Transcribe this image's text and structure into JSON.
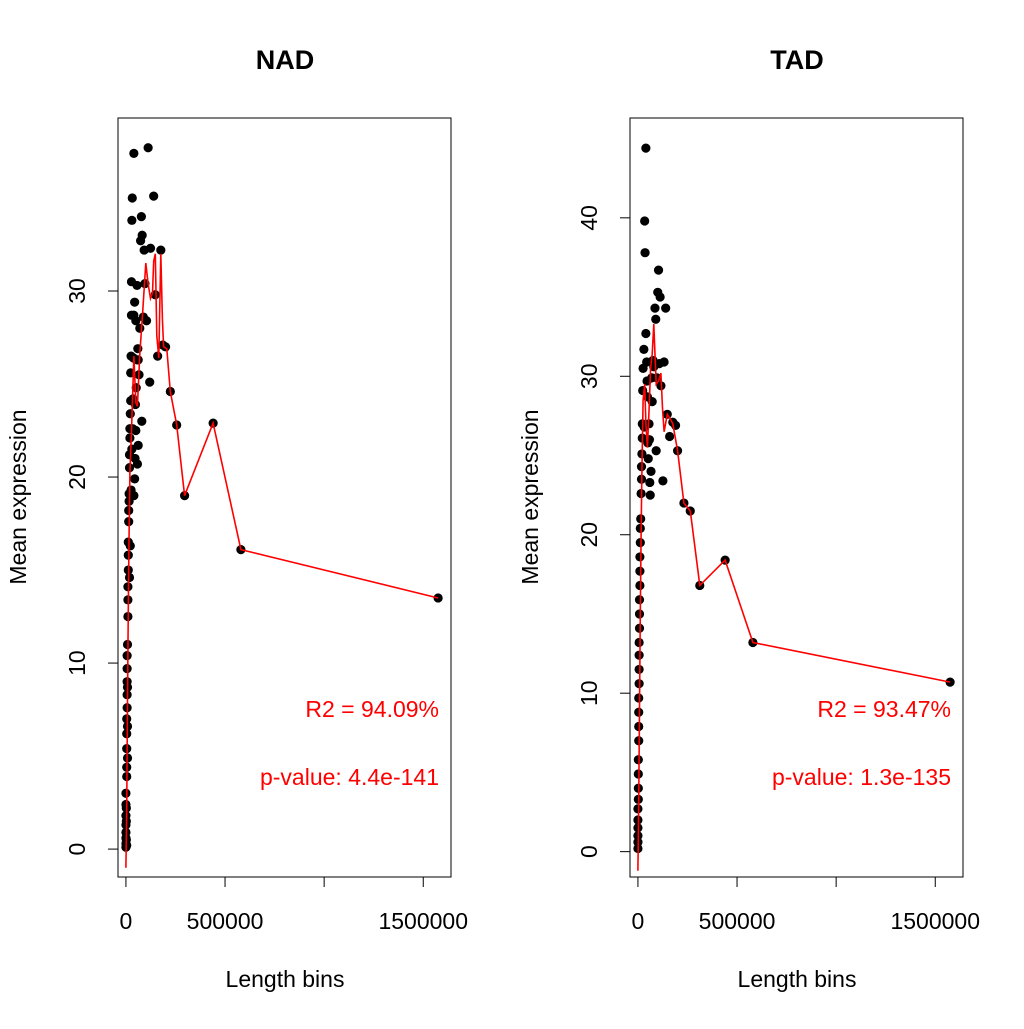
{
  "chart_data": [
    {
      "type": "scatter",
      "title": "NAD",
      "xlabel": "Length bins",
      "ylabel": "Mean expression",
      "xlim": [
        -40000,
        1640000
      ],
      "ylim": [
        -1.5,
        39.3
      ],
      "xticks": [
        0,
        500000,
        1000000,
        1500000
      ],
      "xtick_labels": [
        "0",
        "500000",
        "",
        "1500000"
      ],
      "yticks": [
        0,
        10,
        20,
        30
      ],
      "ytick_labels": [
        "0",
        "10",
        "20",
        "30"
      ],
      "line_color": "#ff0000",
      "point_color": "#000000",
      "annotations": [
        "R2 = 94.09%",
        "p-value: 4.4e-141"
      ],
      "annotation_color": "#ff0000",
      "points": [
        [
          0,
          0.1
        ],
        [
          0,
          0.3
        ],
        [
          0,
          0.6
        ],
        [
          0,
          0.9
        ],
        [
          0,
          1.3
        ],
        [
          0,
          1.8
        ],
        [
          0,
          2.4
        ],
        [
          0,
          3.0
        ],
        [
          2000,
          0.5
        ],
        [
          2000,
          1.5
        ],
        [
          2000,
          2.2
        ],
        [
          4000,
          0.2
        ],
        [
          4000,
          3.9
        ],
        [
          4000,
          4.4
        ],
        [
          4000,
          5.4
        ],
        [
          4000,
          6.2
        ],
        [
          4000,
          7.0
        ],
        [
          6000,
          7.6
        ],
        [
          6000,
          8.3
        ],
        [
          6000,
          9.0
        ],
        [
          6000,
          9.7
        ],
        [
          6000,
          10.4
        ],
        [
          8000,
          11.0
        ],
        [
          8000,
          8.7
        ],
        [
          8000,
          6.6
        ],
        [
          8000,
          4.9
        ],
        [
          10000,
          12.5
        ],
        [
          10000,
          13.4
        ],
        [
          10000,
          14.1
        ],
        [
          12000,
          15.0
        ],
        [
          12000,
          15.8
        ],
        [
          12000,
          16.5
        ],
        [
          14000,
          17.6
        ],
        [
          14000,
          18.2
        ],
        [
          16000,
          18.7
        ],
        [
          16000,
          19.1
        ],
        [
          18000,
          20.5
        ],
        [
          18000,
          21.2
        ],
        [
          20000,
          22.1
        ],
        [
          20000,
          22.6
        ],
        [
          22000,
          23.4
        ],
        [
          24000,
          24.1
        ],
        [
          24000,
          25.6
        ],
        [
          26000,
          26.5
        ],
        [
          28000,
          28.7
        ],
        [
          28000,
          30.5
        ],
        [
          30000,
          33.8
        ],
        [
          32000,
          35.0
        ],
        [
          40000,
          37.4
        ],
        [
          18000,
          14.6
        ],
        [
          22000,
          16.3
        ],
        [
          26000,
          19.3
        ],
        [
          30000,
          21.5
        ],
        [
          34000,
          22.6
        ],
        [
          36000,
          24.2
        ],
        [
          38000,
          26.4
        ],
        [
          40000,
          28.7
        ],
        [
          44000,
          29.4
        ],
        [
          50000,
          28.4
        ],
        [
          56000,
          30.3
        ],
        [
          60000,
          26.9
        ],
        [
          62000,
          26.3
        ],
        [
          66000,
          25.5
        ],
        [
          70000,
          28.0
        ],
        [
          74000,
          32.7
        ],
        [
          78000,
          34.0
        ],
        [
          82000,
          33.0
        ],
        [
          88000,
          28.6
        ],
        [
          92000,
          32.2
        ],
        [
          96000,
          30.4
        ],
        [
          104000,
          28.4
        ],
        [
          112000,
          37.7
        ],
        [
          120000,
          25.1
        ],
        [
          124000,
          32.3
        ],
        [
          140000,
          35.1
        ],
        [
          148000,
          29.8
        ],
        [
          160000,
          26.5
        ],
        [
          176000,
          32.2
        ],
        [
          186000,
          27.1
        ],
        [
          200000,
          27.0
        ],
        [
          40000,
          19.0
        ],
        [
          44000,
          19.9
        ],
        [
          46000,
          21.0
        ],
        [
          48000,
          23.9
        ],
        [
          50000,
          22.5
        ],
        [
          52000,
          24.8
        ],
        [
          56000,
          26.3
        ],
        [
          58000,
          20.7
        ],
        [
          62000,
          21.7
        ],
        [
          80000,
          23.0
        ],
        [
          224000,
          24.6
        ],
        [
          256000,
          22.8
        ],
        [
          296000,
          19.0
        ],
        [
          440000,
          22.9
        ],
        [
          580000,
          16.1
        ],
        [
          1575000,
          13.5
        ]
      ],
      "curve": [
        [
          0,
          -1.0
        ],
        [
          4000,
          2.0
        ],
        [
          8000,
          8.0
        ],
        [
          12000,
          13.0
        ],
        [
          16000,
          17.0
        ],
        [
          20000,
          20.2
        ],
        [
          28000,
          22.5
        ],
        [
          40000,
          26.5
        ],
        [
          50000,
          24.0
        ],
        [
          58000,
          23.8
        ],
        [
          70000,
          26.6
        ],
        [
          84000,
          28.8
        ],
        [
          100000,
          31.5
        ],
        [
          112000,
          30.4
        ],
        [
          124000,
          29.6
        ],
        [
          134000,
          29.9
        ],
        [
          140000,
          31.6
        ],
        [
          148000,
          32.0
        ],
        [
          156000,
          27.6
        ],
        [
          166000,
          26.4
        ],
        [
          176000,
          32.0
        ],
        [
          184000,
          28.5
        ],
        [
          190000,
          27.0
        ],
        [
          206000,
          26.9
        ],
        [
          224000,
          24.6
        ],
        [
          256000,
          22.8
        ],
        [
          296000,
          19.0
        ],
        [
          440000,
          22.9
        ],
        [
          580000,
          16.1
        ],
        [
          1575000,
          13.5
        ]
      ]
    },
    {
      "type": "scatter",
      "title": "TAD",
      "xlabel": "Length bins",
      "ylabel": "Mean expression",
      "xlim": [
        -40000,
        1640000
      ],
      "ylim": [
        -1.6,
        46.3
      ],
      "xticks": [
        0,
        500000,
        1000000,
        1500000
      ],
      "xtick_labels": [
        "0",
        "500000",
        "",
        "1500000"
      ],
      "yticks": [
        0,
        10,
        20,
        30,
        40
      ],
      "ytick_labels": [
        "0",
        "10",
        "20",
        "30",
        "40"
      ],
      "line_color": "#ff0000",
      "point_color": "#000000",
      "annotations": [
        "R2 = 93.47%",
        "p-value: 1.3e-135"
      ],
      "annotation_color": "#ff0000",
      "points": [
        [
          0,
          0.2
        ],
        [
          0,
          0.6
        ],
        [
          0,
          1.0
        ],
        [
          0,
          1.5
        ],
        [
          0,
          2.0
        ],
        [
          0,
          2.7
        ],
        [
          2000,
          3.3
        ],
        [
          2000,
          4.0
        ],
        [
          2000,
          4.9
        ],
        [
          2000,
          5.8
        ],
        [
          4000,
          7.0
        ],
        [
          4000,
          7.9
        ],
        [
          4000,
          8.8
        ],
        [
          4000,
          9.7
        ],
        [
          6000,
          10.6
        ],
        [
          6000,
          11.5
        ],
        [
          6000,
          12.4
        ],
        [
          6000,
          13.2
        ],
        [
          8000,
          14.1
        ],
        [
          8000,
          15.0
        ],
        [
          8000,
          15.9
        ],
        [
          10000,
          16.8
        ],
        [
          10000,
          17.7
        ],
        [
          10000,
          18.6
        ],
        [
          12000,
          19.5
        ],
        [
          12000,
          20.4
        ],
        [
          14000,
          21.0
        ],
        [
          16000,
          22.6
        ],
        [
          18000,
          23.5
        ],
        [
          18000,
          24.3
        ],
        [
          20000,
          25.1
        ],
        [
          22000,
          26.1
        ],
        [
          22000,
          27.0
        ],
        [
          24000,
          29.1
        ],
        [
          26000,
          30.5
        ],
        [
          30000,
          31.7
        ],
        [
          32000,
          26.8
        ],
        [
          34000,
          39.8
        ],
        [
          36000,
          37.8
        ],
        [
          40000,
          44.4
        ],
        [
          40000,
          32.7
        ],
        [
          44000,
          30.9
        ],
        [
          46000,
          29.7
        ],
        [
          48000,
          28.7
        ],
        [
          50000,
          25.8
        ],
        [
          52000,
          24.8
        ],
        [
          56000,
          27.0
        ],
        [
          58000,
          26.0
        ],
        [
          60000,
          23.3
        ],
        [
          62000,
          22.5
        ],
        [
          66000,
          24.0
        ],
        [
          70000,
          29.9
        ],
        [
          72000,
          28.4
        ],
        [
          76000,
          31.0
        ],
        [
          80000,
          30.6
        ],
        [
          86000,
          34.3
        ],
        [
          90000,
          33.6
        ],
        [
          92000,
          25.3
        ],
        [
          96000,
          29.9
        ],
        [
          100000,
          35.3
        ],
        [
          104000,
          36.7
        ],
        [
          108000,
          30.8
        ],
        [
          112000,
          35.0
        ],
        [
          116000,
          29.4
        ],
        [
          126000,
          23.4
        ],
        [
          132000,
          30.9
        ],
        [
          140000,
          34.3
        ],
        [
          148000,
          27.6
        ],
        [
          160000,
          26.2
        ],
        [
          176000,
          27.1
        ],
        [
          190000,
          26.9
        ],
        [
          200000,
          25.3
        ],
        [
          232000,
          22.0
        ],
        [
          264000,
          21.5
        ],
        [
          312000,
          16.8
        ],
        [
          440000,
          18.4
        ],
        [
          580000,
          13.2
        ],
        [
          1575000,
          10.7
        ]
      ],
      "curve": [
        [
          0,
          -1.2
        ],
        [
          4000,
          3.0
        ],
        [
          8000,
          9.0
        ],
        [
          12000,
          15.0
        ],
        [
          16000,
          20.0
        ],
        [
          20000,
          24.0
        ],
        [
          26000,
          28.5
        ],
        [
          34000,
          29.5
        ],
        [
          40000,
          27.0
        ],
        [
          48000,
          25.5
        ],
        [
          56000,
          27.8
        ],
        [
          64000,
          30.5
        ],
        [
          72000,
          31.4
        ],
        [
          80000,
          33.3
        ],
        [
          84000,
          32.0
        ],
        [
          92000,
          29.5
        ],
        [
          104000,
          29.7
        ],
        [
          116000,
          30.2
        ],
        [
          124000,
          28.0
        ],
        [
          132000,
          26.5
        ],
        [
          148000,
          27.6
        ],
        [
          164000,
          27.3
        ],
        [
          176000,
          27.0
        ],
        [
          200000,
          25.3
        ],
        [
          232000,
          22.0
        ],
        [
          264000,
          21.5
        ],
        [
          312000,
          16.8
        ],
        [
          440000,
          18.4
        ],
        [
          580000,
          13.2
        ],
        [
          1575000,
          10.7
        ]
      ]
    }
  ]
}
